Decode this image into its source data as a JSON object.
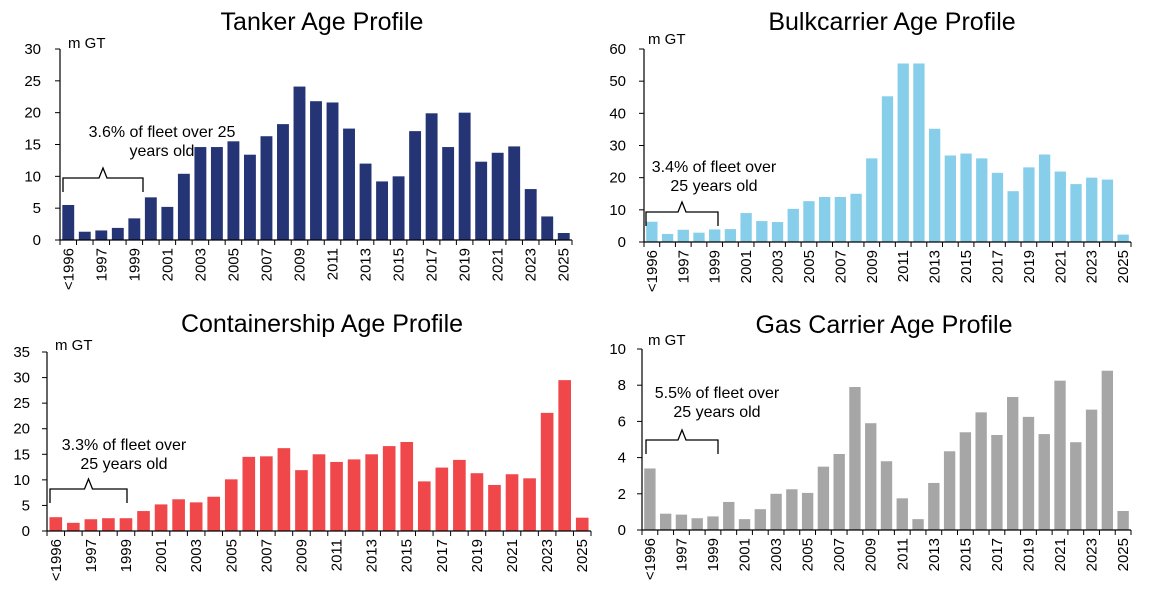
{
  "chart_data": [
    {
      "type": "bar",
      "title": "Tanker Age Profile",
      "ylabel": "m GT",
      "ylim": [
        0,
        30
      ],
      "yticks": [
        "0",
        "5",
        "10",
        "15",
        "20",
        "25",
        "30"
      ],
      "color": "#253475",
      "categories": [
        "<1996",
        "1996",
        "1997",
        "1998",
        "1999",
        "2000",
        "2001",
        "2002",
        "2003",
        "2004",
        "2005",
        "2006",
        "2007",
        "2008",
        "2009",
        "2010",
        "2011",
        "2012",
        "2013",
        "2014",
        "2015",
        "2016",
        "2017",
        "2018",
        "2019",
        "2020",
        "2021",
        "2022",
        "2023",
        "2024",
        "2025"
      ],
      "xtick_labels": [
        "<1996",
        "1997",
        "1999",
        "2001",
        "2003",
        "2005",
        "2007",
        "2009",
        "2011",
        "2013",
        "2015",
        "2017",
        "2019",
        "2021",
        "2023",
        "2025"
      ],
      "values": [
        5.5,
        1.3,
        1.5,
        1.9,
        3.4,
        6.7,
        5.2,
        10.4,
        14.6,
        14.6,
        15.5,
        13.4,
        16.3,
        18.2,
        24.1,
        21.8,
        21.6,
        17.5,
        12.0,
        9.2,
        10.0,
        17.1,
        19.9,
        14.6,
        20.0,
        12.3,
        13.7,
        14.7,
        8.0,
        3.7,
        1.1
      ],
      "annotation": {
        "lines": [
          "3.6% of fleet over 25",
          "years old"
        ]
      }
    },
    {
      "type": "bar",
      "title": "Bulkcarrier Age Profile",
      "ylabel": "m GT",
      "ylim": [
        0,
        60
      ],
      "yticks": [
        "0",
        "10",
        "20",
        "30",
        "40",
        "50",
        "60"
      ],
      "color": "#87CEEB",
      "categories": [
        "<1996",
        "1996",
        "1997",
        "1998",
        "1999",
        "2000",
        "2001",
        "2002",
        "2003",
        "2004",
        "2005",
        "2006",
        "2007",
        "2008",
        "2009",
        "2010",
        "2011",
        "2012",
        "2013",
        "2014",
        "2015",
        "2016",
        "2017",
        "2018",
        "2019",
        "2020",
        "2021",
        "2022",
        "2023",
        "2024",
        "2025"
      ],
      "xtick_labels": [
        "<1996",
        "1997",
        "1999",
        "2001",
        "2003",
        "2005",
        "2007",
        "2009",
        "2011",
        "2013",
        "2015",
        "2017",
        "2019",
        "2021",
        "2023",
        "2025"
      ],
      "values": [
        6.3,
        2.5,
        3.8,
        2.9,
        3.9,
        4.0,
        9.0,
        6.5,
        6.2,
        10.3,
        12.7,
        14.0,
        14.0,
        15.0,
        26.0,
        45.3,
        55.5,
        55.5,
        35.2,
        26.9,
        27.5,
        26.0,
        21.5,
        15.8,
        23.2,
        27.2,
        21.9,
        18.0,
        20.0,
        19.4,
        2.3
      ],
      "annotation": {
        "lines": [
          "3.4% of fleet over",
          "25 years old"
        ]
      }
    },
    {
      "type": "bar",
      "title": "Containership Age Profile",
      "ylabel": "m GT",
      "ylim": [
        0,
        35
      ],
      "yticks": [
        "0",
        "5",
        "10",
        "15",
        "20",
        "25",
        "30",
        "35"
      ],
      "color": "#F0474B",
      "categories": [
        "<1996",
        "1996",
        "1997",
        "1998",
        "1999",
        "2000",
        "2001",
        "2002",
        "2003",
        "2004",
        "2005",
        "2006",
        "2007",
        "2008",
        "2009",
        "2010",
        "2011",
        "2012",
        "2013",
        "2014",
        "2015",
        "2016",
        "2017",
        "2018",
        "2019",
        "2020",
        "2021",
        "2022",
        "2023",
        "2024",
        "2025"
      ],
      "xtick_labels": [
        "<1996",
        "1997",
        "1999",
        "2001",
        "2003",
        "2005",
        "2007",
        "2009",
        "2011",
        "2013",
        "2015",
        "2017",
        "2019",
        "2021",
        "2023",
        "2025"
      ],
      "values": [
        2.7,
        1.6,
        2.3,
        2.5,
        2.5,
        3.9,
        5.2,
        6.2,
        5.6,
        6.7,
        10.1,
        14.5,
        14.6,
        16.2,
        11.9,
        15.0,
        13.5,
        14.0,
        15.0,
        16.6,
        17.4,
        9.7,
        12.4,
        13.9,
        11.3,
        9.0,
        11.1,
        10.3,
        23.1,
        29.5,
        2.6
      ],
      "annotation": {
        "lines": [
          "3.3% of fleet over",
          "25 years old"
        ]
      }
    },
    {
      "type": "bar",
      "title": "Gas Carrier Age Profile",
      "ylabel": "m GT",
      "ylim": [
        0,
        10
      ],
      "yticks": [
        "0",
        "2",
        "4",
        "6",
        "8",
        "10"
      ],
      "color": "#A6A6A6",
      "categories": [
        "<1996",
        "1996",
        "1997",
        "1998",
        "1999",
        "2000",
        "2001",
        "2002",
        "2003",
        "2004",
        "2005",
        "2006",
        "2007",
        "2008",
        "2009",
        "2010",
        "2011",
        "2012",
        "2013",
        "2014",
        "2015",
        "2016",
        "2017",
        "2018",
        "2019",
        "2020",
        "2021",
        "2022",
        "2023",
        "2024",
        "2025"
      ],
      "xtick_labels": [
        "<1996",
        "1997",
        "1999",
        "2001",
        "2003",
        "2005",
        "2007",
        "2009",
        "2011",
        "2013",
        "2015",
        "2017",
        "2019",
        "2021",
        "2023",
        "2025"
      ],
      "values": [
        3.4,
        0.9,
        0.85,
        0.65,
        0.75,
        1.55,
        0.6,
        1.15,
        2.0,
        2.25,
        2.05,
        3.5,
        4.2,
        7.9,
        5.9,
        3.8,
        1.75,
        0.6,
        2.6,
        4.35,
        5.4,
        6.5,
        5.25,
        7.35,
        6.25,
        5.3,
        8.25,
        4.85,
        6.65,
        8.8,
        1.05
      ],
      "annotation": {
        "lines": [
          "5.5% of fleet over",
          "25 years old"
        ]
      }
    }
  ]
}
